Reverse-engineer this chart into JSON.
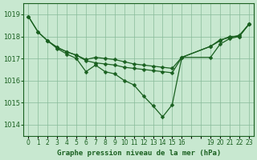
{
  "title": "Graphe pression niveau de la mer (hPa)",
  "background_color": "#c8e8d0",
  "plot_bg_color": "#c8e8d0",
  "grid_color": "#88bb99",
  "line_color": "#1a6020",
  "xlim": [
    -0.5,
    23.5
  ],
  "ylim": [
    1013.5,
    1019.5
  ],
  "yticks": [
    1014,
    1015,
    1016,
    1017,
    1018,
    1019
  ],
  "xtick_positions": [
    0,
    1,
    2,
    3,
    4,
    5,
    6,
    7,
    8,
    9,
    10,
    11,
    12,
    13,
    14,
    15,
    16,
    17,
    18,
    19,
    20,
    21,
    22,
    23
  ],
  "xtick_labels": [
    "0",
    "1",
    "2",
    "3",
    "4",
    "5",
    "6",
    "7",
    "8",
    "9",
    "10",
    "11",
    "12",
    "13",
    "14",
    "15",
    "16",
    "",
    "",
    "19",
    "20",
    "21",
    "22",
    "23"
  ],
  "series1_x": [
    0,
    1,
    2,
    3,
    4,
    5,
    6,
    7,
    8,
    9,
    10,
    11,
    12,
    13,
    14,
    15,
    16,
    19,
    20,
    21,
    22,
    23
  ],
  "series1_y": [
    1018.9,
    1018.2,
    1017.8,
    1017.45,
    1017.2,
    1017.0,
    1016.4,
    1016.7,
    1016.4,
    1016.3,
    1016.0,
    1015.8,
    1015.3,
    1014.85,
    1014.35,
    1014.9,
    1017.05,
    1017.55,
    1017.8,
    1018.0,
    1018.0,
    1018.55
  ],
  "series2_x": [
    0,
    1,
    2,
    3,
    4,
    5,
    6,
    7,
    8,
    9,
    10,
    11,
    12,
    13,
    14,
    15,
    16,
    19,
    20,
    21,
    22,
    23
  ],
  "series2_y": [
    1018.9,
    1018.2,
    1017.8,
    1017.5,
    1017.3,
    1017.15,
    1016.95,
    1017.05,
    1017.0,
    1016.95,
    1016.85,
    1016.75,
    1016.7,
    1016.65,
    1016.6,
    1016.55,
    1017.05,
    1017.55,
    1017.85,
    1017.95,
    1018.05,
    1018.55
  ],
  "series3_x": [
    2,
    3,
    4,
    5,
    6,
    7,
    8,
    9,
    10,
    11,
    12,
    13,
    14,
    15,
    16,
    19,
    20,
    21,
    22,
    23
  ],
  "series3_y": [
    1017.8,
    1017.5,
    1017.3,
    1017.15,
    1016.9,
    1016.8,
    1016.75,
    1016.7,
    1016.6,
    1016.55,
    1016.5,
    1016.45,
    1016.4,
    1016.35,
    1017.05,
    1017.05,
    1017.65,
    1017.9,
    1018.0,
    1018.55
  ]
}
